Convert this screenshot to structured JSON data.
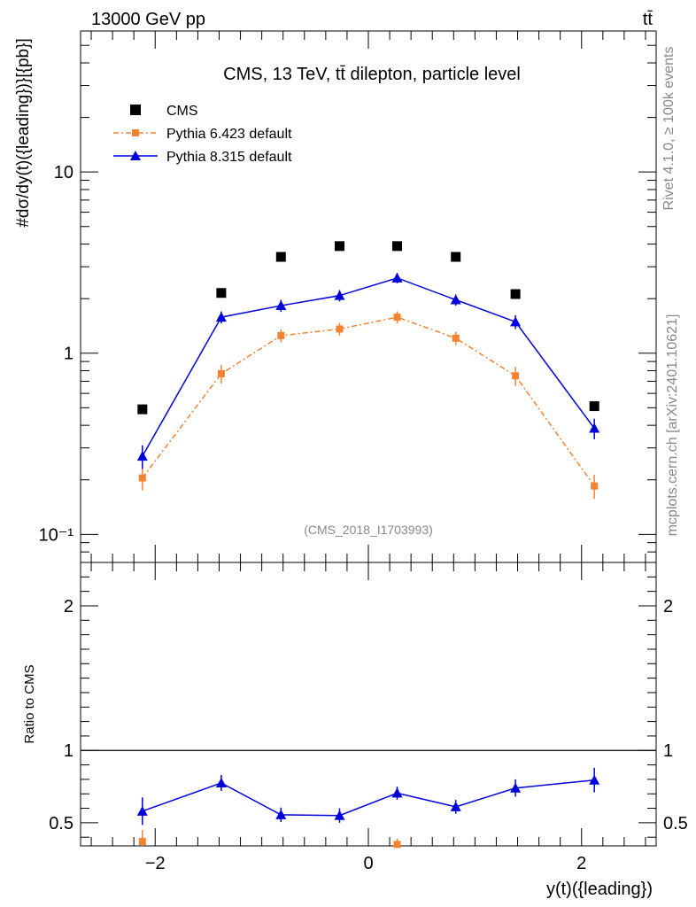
{
  "header": {
    "left_label": "13000 GeV pp",
    "right_label": "tt̄"
  },
  "side_labels": {
    "rivet": "Rivet 4.1.0, ≥ 100k events",
    "mcplots": "mcplots.cern.ch [arXiv:2401.10621]"
  },
  "colors": {
    "cms": "#000000",
    "pythia6": "#f58231",
    "pythia8": "#0000dd"
  },
  "chart_data": [
    {
      "type": "line",
      "title": "CMS, 13 TeV, tt̄ dilepton, particle level",
      "annotation": "(CMS_2018_I1703993)",
      "ylabel": "#dσ/dy(t)({leading})}[{pb}]",
      "yscale": "log",
      "ylim": [
        0.07,
        60
      ],
      "xlim": [
        -2.7,
        2.7
      ],
      "y_tick_labels": [
        "10⁻¹",
        "1",
        "10"
      ],
      "y_ticks": [
        0.1,
        1,
        10
      ],
      "legend": [
        "CMS",
        "Pythia 6.423 default",
        "Pythia 8.315 default"
      ],
      "legend_position": "top-left",
      "x": [
        -2.12,
        -1.38,
        -0.82,
        -0.27,
        0.27,
        0.82,
        1.38,
        2.12
      ],
      "series": [
        {
          "name": "CMS",
          "marker": "square",
          "values": [
            0.49,
            2.15,
            3.4,
            3.9,
            3.9,
            3.4,
            2.12,
            0.51
          ]
        },
        {
          "name": "Pythia 6.423 default",
          "marker": "square",
          "values": [
            0.205,
            0.77,
            1.25,
            1.36,
            1.58,
            1.21,
            0.75,
            0.185
          ],
          "errors": [
            0.03,
            0.09,
            0.1,
            0.11,
            0.12,
            0.1,
            0.09,
            0.028
          ]
        },
        {
          "name": "Pythia 8.315 default",
          "marker": "triangle",
          "values": [
            0.27,
            1.58,
            1.83,
            2.08,
            2.6,
            1.97,
            1.49,
            0.385
          ],
          "errors": [
            0.04,
            0.12,
            0.14,
            0.15,
            0.17,
            0.14,
            0.13,
            0.05
          ]
        }
      ]
    },
    {
      "type": "line",
      "xlabel": "y(t)({leading})",
      "ylabel": "Ratio to CMS",
      "ylim": [
        0.34,
        2.3
      ],
      "xlim": [
        -2.7,
        2.7
      ],
      "x_tick_labels": [
        "−2",
        "0",
        "2"
      ],
      "x_ticks": [
        -2,
        0,
        2
      ],
      "y_tick_labels": [
        "0.5",
        "1",
        "2"
      ],
      "y_ticks": [
        0.5,
        1,
        2
      ],
      "reference_line": 1,
      "x": [
        -2.12,
        -1.38,
        -0.82,
        -0.27,
        0.27,
        0.82,
        1.38,
        2.12
      ],
      "series": [
        {
          "name": "Pythia 8.315 default",
          "values": [
            0.58,
            0.775,
            0.555,
            0.55,
            0.705,
            0.61,
            0.74,
            0.795
          ],
          "errors": [
            0.095,
            0.055,
            0.05,
            0.05,
            0.045,
            0.048,
            0.06,
            0.085
          ]
        },
        {
          "name": "Pythia 6.423 default",
          "points": [
            [
              -2.12,
              0.37
            ],
            [
              0.27,
              0.35
            ]
          ],
          "errors": [
            0.08,
            0.04
          ]
        }
      ]
    }
  ]
}
